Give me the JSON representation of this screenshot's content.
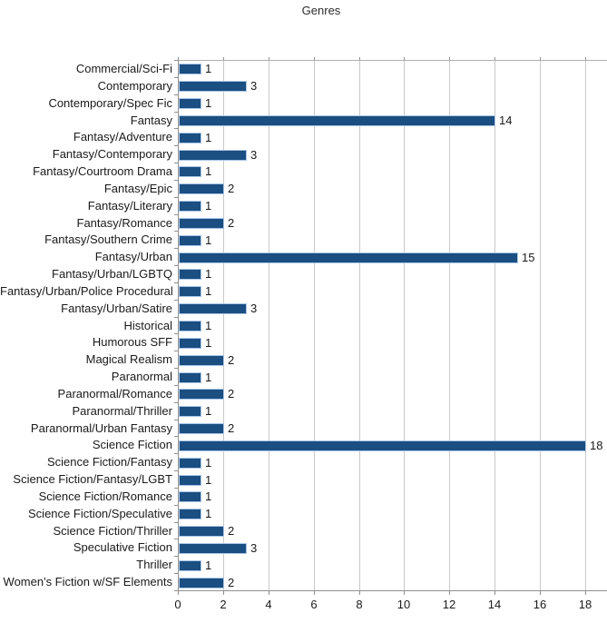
{
  "chart_data": {
    "type": "bar",
    "orientation": "horizontal",
    "title": "Genres",
    "categories": [
      "Commercial/Sci-Fi",
      "Contemporary",
      "Contemporary/Spec Fic",
      "Fantasy",
      "Fantasy/Adventure",
      "Fantasy/Contemporary",
      "Fantasy/Courtroom Drama",
      "Fantasy/Epic",
      "Fantasy/Literary",
      "Fantasy/Romance",
      "Fantasy/Southern Crime",
      "Fantasy/Urban",
      "Fantasy/Urban/LGBTQ",
      "Fantasy/Urban/Police Procedural",
      "Fantasy/Urban/Satire",
      "Historical",
      "Humorous SFF",
      "Magical Realism",
      "Paranormal",
      "Paranormal/Romance",
      "Paranormal/Thriller",
      "Paranormal/Urban Fantasy",
      "Science Fiction",
      "Science Fiction/Fantasy",
      "Science Fiction/Fantasy/LGBT",
      "Science Fiction/Romance",
      "Science Fiction/Speculative",
      "Science Fiction/Thriller",
      "Speculative Fiction",
      "Thriller",
      "Women's Fiction w/SF Elements"
    ],
    "values": [
      1,
      3,
      1,
      14,
      1,
      3,
      1,
      2,
      1,
      2,
      1,
      15,
      1,
      1,
      3,
      1,
      1,
      2,
      1,
      2,
      1,
      2,
      18,
      1,
      1,
      1,
      1,
      2,
      3,
      1,
      2
    ],
    "value_labels_shown": true,
    "xlabel": "",
    "ylabel": "",
    "xlim": [
      0,
      18
    ],
    "xticks": [
      0,
      2,
      4,
      6,
      8,
      10,
      12,
      14,
      16,
      18
    ],
    "grid": "vertical-major",
    "legend": "none",
    "bar_color": "#1B4E81",
    "bar_border_color": "#A9C6E7",
    "gridline_color": "#C9C9C9",
    "axis_color": "#909090",
    "text_color": "#1A1A1A"
  }
}
